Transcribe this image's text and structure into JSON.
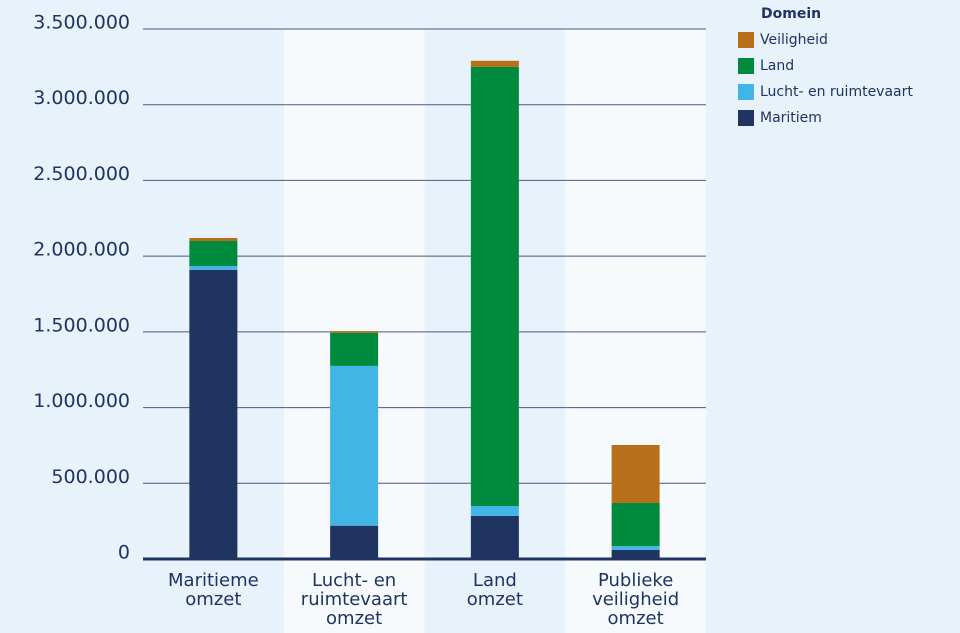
{
  "chart_data": {
    "type": "stacked_bar",
    "categories": [
      [
        "Maritieme",
        "omzet"
      ],
      [
        "Lucht- en",
        "ruimtevaart",
        "omzet"
      ],
      [
        "Land",
        "omzet"
      ],
      [
        "Publieke",
        "veiligheid",
        "omzet"
      ]
    ],
    "series": [
      {
        "name": "Maritiem",
        "color": "#1f3461",
        "values": [
          1910000,
          220000,
          285000,
          60000
        ]
      },
      {
        "name": "Lucht- en ruimtevaart",
        "color": "#41b6e6",
        "values": [
          25000,
          1055000,
          65000,
          25000
        ]
      },
      {
        "name": "Land",
        "color": "#008a3e",
        "values": [
          165000,
          218000,
          2900000,
          285000
        ]
      },
      {
        "name": "Veiligheid",
        "color": "#b86f1a",
        "values": [
          20000,
          12000,
          40000,
          383000
        ]
      }
    ],
    "legend_title": "Domein",
    "legend_position": "top-right",
    "ylim": [
      0,
      3500000
    ],
    "yticks": [
      0,
      {
        "value": 500000,
        "label": "500.000"
      },
      {
        "value": 1000000,
        "label": "1.000.000"
      },
      {
        "value": 1500000,
        "label": "1.500.000"
      },
      {
        "value": 2000000,
        "label": "2.000.000"
      },
      {
        "value": 2500000,
        "label": "2.500.000"
      },
      {
        "value": 3000000,
        "label": "3.000.000"
      },
      {
        "value": 3500000,
        "label": "3.500.000"
      }
    ],
    "grid": true
  }
}
